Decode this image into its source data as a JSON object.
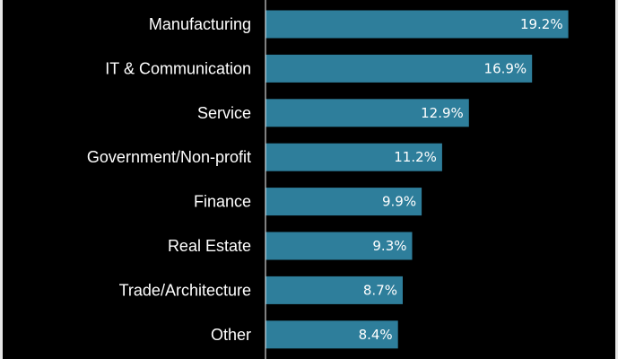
{
  "chart_data": {
    "type": "bar",
    "orientation": "horizontal",
    "title": "",
    "xlabel": "",
    "ylabel": "",
    "categories": [
      "Manufacturing",
      "IT & Communication",
      "Service",
      "Government/Non-profit",
      "Finance",
      "Real Estate",
      "Trade/Architecture",
      "Other"
    ],
    "values": [
      19.2,
      16.9,
      12.9,
      11.2,
      9.9,
      9.3,
      8.7,
      8.4
    ],
    "value_labels": [
      "19.2%",
      "16.9%",
      "12.9%",
      "11.2%",
      "9.9%",
      "9.3%",
      "8.7%",
      "8.4%"
    ],
    "xlim": [
      0,
      20.7
    ],
    "grid": false,
    "legend": "none"
  },
  "colors": {
    "background": "#000000",
    "bar": "#2e7e9b",
    "category_text": "#ffffff",
    "value_text": "#ffffff",
    "axis_line": "#ffffff"
  }
}
